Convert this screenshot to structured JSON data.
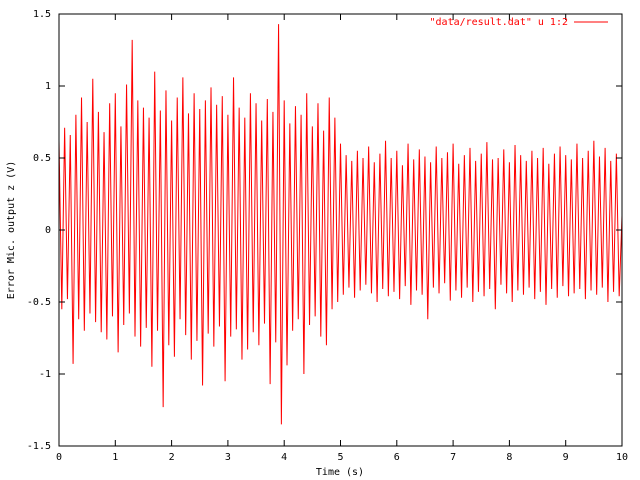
{
  "chart_data": {
    "type": "line",
    "xlabel": "Time (s)",
    "ylabel": "Error Mic. output z (V)",
    "x": [
      0,
      0.05,
      0.1,
      0.15,
      0.2,
      0.25,
      0.3,
      0.35,
      0.4,
      0.45,
      0.5,
      0.55,
      0.6,
      0.65,
      0.7,
      0.75,
      0.8,
      0.85,
      0.9,
      0.95,
      1,
      1.05,
      1.1,
      1.15,
      1.2,
      1.25,
      1.3,
      1.35,
      1.4,
      1.45,
      1.5,
      1.55,
      1.6,
      1.65,
      1.7,
      1.75,
      1.8,
      1.85,
      1.9,
      1.95,
      2,
      2.05,
      2.1,
      2.15,
      2.2,
      2.25,
      2.3,
      2.35,
      2.4,
      2.45,
      2.5,
      2.55,
      2.6,
      2.65,
      2.7,
      2.75,
      2.8,
      2.85,
      2.9,
      2.95,
      3,
      3.05,
      3.1,
      3.15,
      3.2,
      3.25,
      3.3,
      3.35,
      3.4,
      3.45,
      3.5,
      3.55,
      3.6,
      3.65,
      3.7,
      3.75,
      3.8,
      3.85,
      3.9,
      3.95,
      4,
      4.05,
      4.1,
      4.15,
      4.2,
      4.25,
      4.3,
      4.35,
      4.4,
      4.45,
      4.5,
      4.55,
      4.6,
      4.65,
      4.7,
      4.75,
      4.8,
      4.85,
      4.9,
      4.95,
      5,
      5.05,
      5.1,
      5.15,
      5.2,
      5.25,
      5.3,
      5.35,
      5.4,
      5.45,
      5.5,
      5.55,
      5.6,
      5.65,
      5.7,
      5.75,
      5.8,
      5.85,
      5.9,
      5.95,
      6,
      6.05,
      6.1,
      6.15,
      6.2,
      6.25,
      6.3,
      6.35,
      6.4,
      6.45,
      6.5,
      6.55,
      6.6,
      6.65,
      6.7,
      6.75,
      6.8,
      6.85,
      6.9,
      6.95,
      7,
      7.05,
      7.1,
      7.15,
      7.2,
      7.25,
      7.3,
      7.35,
      7.4,
      7.45,
      7.5,
      7.55,
      7.6,
      7.65,
      7.7,
      7.75,
      7.8,
      7.85,
      7.9,
      7.95,
      8,
      8.05,
      8.1,
      8.15,
      8.2,
      8.25,
      8.3,
      8.35,
      8.4,
      8.45,
      8.5,
      8.55,
      8.6,
      8.65,
      8.7,
      8.75,
      8.8,
      8.85,
      8.9,
      8.95,
      9,
      9.05,
      9.1,
      9.15,
      9.2,
      9.25,
      9.3,
      9.35,
      9.4,
      9.45,
      9.5,
      9.55,
      9.6,
      9.65,
      9.7,
      9.75,
      9.8,
      9.85,
      9.9,
      9.95,
      10
    ],
    "series": [
      {
        "name": "\"data/result.dat\" u 1:2",
        "color": "#ff0000",
        "values": [
          0.62,
          -0.55,
          0.71,
          -0.48,
          0.66,
          -0.93,
          0.8,
          -0.62,
          0.92,
          -0.7,
          0.75,
          -0.58,
          1.05,
          -0.64,
          0.82,
          -0.71,
          0.68,
          -0.76,
          0.88,
          -0.6,
          0.95,
          -0.85,
          0.72,
          -0.66,
          1.01,
          -0.58,
          1.32,
          -0.74,
          0.9,
          -0.81,
          0.85,
          -0.68,
          0.78,
          -0.95,
          1.1,
          -0.7,
          0.83,
          -1.23,
          0.97,
          -0.8,
          0.76,
          -0.88,
          0.92,
          -0.62,
          1.06,
          -0.73,
          0.81,
          -0.9,
          0.95,
          -0.77,
          0.84,
          -1.08,
          0.9,
          -0.72,
          0.99,
          -0.81,
          0.87,
          -0.67,
          0.93,
          -1.05,
          0.8,
          -0.74,
          1.06,
          -0.69,
          0.85,
          -0.9,
          0.78,
          -0.83,
          0.95,
          -0.71,
          0.88,
          -0.8,
          0.76,
          -0.65,
          0.91,
          -1.07,
          0.82,
          -0.78,
          1.43,
          -1.35,
          0.9,
          -0.94,
          0.74,
          -0.7,
          0.86,
          -0.62,
          0.8,
          -1.0,
          0.95,
          -0.66,
          0.72,
          -0.6,
          0.88,
          -0.74,
          0.69,
          -0.8,
          0.92,
          -0.55,
          0.78,
          -0.5,
          0.6,
          -0.45,
          0.52,
          -0.4,
          0.48,
          -0.47,
          0.55,
          -0.42,
          0.5,
          -0.38,
          0.58,
          -0.44,
          0.47,
          -0.5,
          0.53,
          -0.41,
          0.62,
          -0.46,
          0.5,
          -0.43,
          0.55,
          -0.48,
          0.45,
          -0.39,
          0.6,
          -0.52,
          0.49,
          -0.42,
          0.56,
          -0.45,
          0.51,
          -0.62,
          0.47,
          -0.4,
          0.58,
          -0.44,
          0.5,
          -0.37,
          0.54,
          -0.49,
          0.6,
          -0.42,
          0.46,
          -0.47,
          0.52,
          -0.4,
          0.57,
          -0.5,
          0.48,
          -0.43,
          0.53,
          -0.46,
          0.61,
          -0.41,
          0.49,
          -0.55,
          0.5,
          -0.38,
          0.56,
          -0.44,
          0.47,
          -0.5,
          0.59,
          -0.42,
          0.52,
          -0.45,
          0.48,
          -0.4,
          0.55,
          -0.48,
          0.5,
          -0.43,
          0.57,
          -0.52,
          0.46,
          -0.41,
          0.53,
          -0.47,
          0.58,
          -0.39,
          0.52,
          -0.46,
          0.49,
          -0.44,
          0.6,
          -0.41,
          0.5,
          -0.48,
          0.55,
          -0.42,
          0.62,
          -0.45,
          0.51,
          -0.4,
          0.57,
          -0.5,
          0.48,
          -0.43,
          0.53,
          -0.46,
          0.1
        ]
      }
    ],
    "xlim": [
      0,
      10
    ],
    "xticks": [
      0,
      1,
      2,
      3,
      4,
      5,
      6,
      7,
      8,
      9,
      10
    ],
    "ylim": [
      -1.5,
      1.5
    ],
    "yticks": [
      -1.5,
      -1,
      -0.5,
      0,
      0.5,
      1,
      1.5
    ],
    "grid": false,
    "legend": "top-right"
  }
}
